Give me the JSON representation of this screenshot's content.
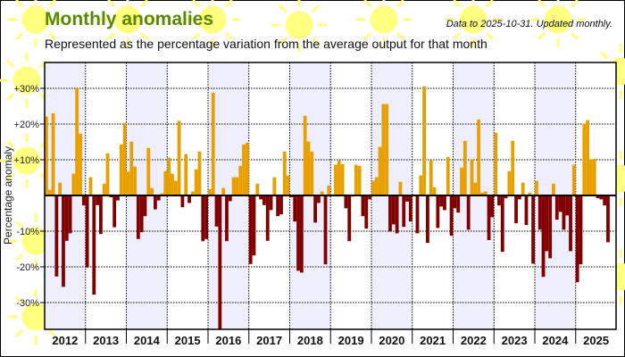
{
  "header": {
    "title": "Monthly anomalies",
    "subtitle": "Represented as the percentage variation from the average output for that month",
    "note": "Data to 2025-10-31. Updated monthly."
  },
  "colors": {
    "positive": "#e8a000",
    "negative": "#800000",
    "shade": "#eeeefc",
    "title": "#5a8a00",
    "sun": "#ffff80"
  },
  "chart_data": {
    "type": "bar",
    "title": "Monthly anomalies",
    "xlabel": "",
    "ylabel": "Percentage anomaly",
    "ylim": [
      -37.5,
      37
    ],
    "yticks": [
      {
        "value": 30,
        "label": "+30%"
      },
      {
        "value": 20,
        "label": "+20%"
      },
      {
        "value": 10,
        "label": "+10%"
      },
      {
        "value": -10,
        "label": "-10%"
      },
      {
        "value": -20,
        "label": "-20%"
      },
      {
        "value": -30,
        "label": "-30%"
      }
    ],
    "grid": true,
    "legend": "none",
    "units": "percent",
    "years": [
      {
        "year": "2012",
        "values": [
          22.1,
          1.6,
          23.0,
          -22.7,
          3.6,
          -25.6,
          -12.7,
          -10.6,
          6.1,
          30.0,
          17.3,
          -2.8
        ]
      },
      {
        "year": "2013",
        "values": [
          -20.2,
          5.1,
          -27.8,
          -2.7,
          -10.8,
          3.3,
          11.8,
          -0.5,
          -8.9,
          -1.4,
          14.3,
          20.3
        ]
      },
      {
        "year": "2014",
        "values": [
          6.7,
          15.1,
          8.1,
          -12.2,
          -10.3,
          -5.8,
          13.3,
          2.1,
          -3.9,
          -1.4,
          0.6,
          6.8
        ]
      },
      {
        "year": "2015",
        "values": [
          10.6,
          6.1,
          4.1,
          20.9,
          -3.3,
          11.6,
          -2.1,
          1.1,
          7.3,
          12.3,
          -12.8,
          -12.2
        ]
      },
      {
        "year": "2016",
        "values": [
          1.8,
          28.8,
          -8.7,
          -40.0,
          2.1,
          -12.8,
          -1.6,
          5.1,
          5.1,
          8.3,
          14.3,
          14.8
        ]
      },
      {
        "year": "2017",
        "values": [
          -19.2,
          -16.8,
          3.3,
          -1.1,
          -2.7,
          -12.7,
          -4.1,
          5.1,
          -5.8,
          -5.3,
          12.3,
          5.6
        ]
      },
      {
        "year": "2018",
        "values": [
          -0.5,
          -7.3,
          -21.1,
          -21.6,
          22.3,
          15.1,
          12.3,
          -7.6,
          -2.1,
          1.1,
          -19.3,
          2.8
        ]
      },
      {
        "year": "2019",
        "values": [
          0.3,
          8.6,
          9.8,
          8.8,
          -3.6,
          -12.8,
          -0.3,
          8.6,
          8.3,
          -5.8,
          -9.3,
          -1.1
        ]
      },
      {
        "year": "2020",
        "values": [
          4.1,
          5.1,
          13.6,
          25.6,
          25.6,
          -10.1,
          -8.1,
          -10.6,
          3.8,
          -8.8,
          -1.7,
          -7.3
        ]
      },
      {
        "year": "2021",
        "values": [
          0.3,
          -10.6,
          5.6,
          30.6,
          -13.3,
          9.8,
          2.3,
          -9.1,
          -3.1,
          -4.1,
          10.8,
          -11.3
        ]
      },
      {
        "year": "2022",
        "values": [
          -3.6,
          -4.8,
          7.8,
          15.3,
          -9.6,
          10.1,
          3.6,
          21.3,
          0.8,
          1.1,
          -12.5,
          -6.1
        ]
      },
      {
        "year": "2023",
        "values": [
          17.6,
          -2.8,
          -15.8,
          -0.8,
          6.8,
          15.3,
          -7.8,
          -1.1,
          3.6,
          -8.3,
          0.8,
          -19.1
        ]
      },
      {
        "year": "2024",
        "values": [
          4.1,
          -9.6,
          -22.8,
          -15.6,
          -17.6,
          3.3,
          -6.8,
          -4.6,
          -9.6,
          -5.6,
          -15.6,
          8.6
        ]
      },
      {
        "year": "2025",
        "values": [
          -24.3,
          -19.3,
          20.1,
          21.1,
          10.1,
          10.3,
          -0.8,
          -1.1,
          -2.8,
          -13.1
        ]
      }
    ]
  }
}
